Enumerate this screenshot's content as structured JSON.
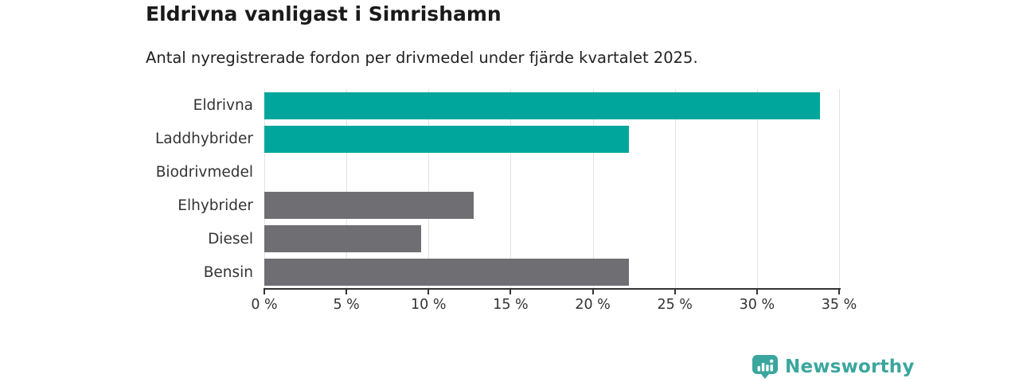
{
  "header": {
    "title": "Eldrivna vanligast i Simrishamn",
    "subtitle": "Antal nyregistrerade fordon per drivmedel under fjärde kvartalet 2025."
  },
  "chart_data": {
    "type": "bar",
    "orientation": "horizontal",
    "title": "Eldrivna vanligast i Simrishamn",
    "subtitle": "Antal nyregistrerade fordon per drivmedel under fjärde kvartalet 2025.",
    "categories": [
      "Eldrivna",
      "Laddhybrider",
      "Biodrivmedel",
      "Elhybrider",
      "Diesel",
      "Bensin"
    ],
    "values": [
      33.7,
      22.1,
      0,
      12.7,
      9.5,
      22.1
    ],
    "unit": "%",
    "xlabel": "",
    "ylabel": "",
    "xlim": [
      0,
      35
    ],
    "x_tick_values": [
      0,
      5,
      10,
      15,
      20,
      25,
      30,
      35
    ],
    "x_tick_labels": [
      "0 %",
      "5 %",
      "10 %",
      "15 %",
      "20 %",
      "25 %",
      "30 %",
      "35 %"
    ],
    "grid": true,
    "legend": false,
    "bar_colors": [
      "#00a69b",
      "#00a69b",
      null,
      "#6f6e73",
      "#6f6e73",
      "#6f6e73"
    ],
    "highlight_color": "#00a69b",
    "default_color": "#6f6e73",
    "gridline_color": "#e2e2e2",
    "axis_color": "#333333"
  },
  "branding": {
    "logo_label": "Newsworthy",
    "logo_icon": "newsworthy-chart-bubble-icon",
    "logo_color": "#3ba69e"
  }
}
